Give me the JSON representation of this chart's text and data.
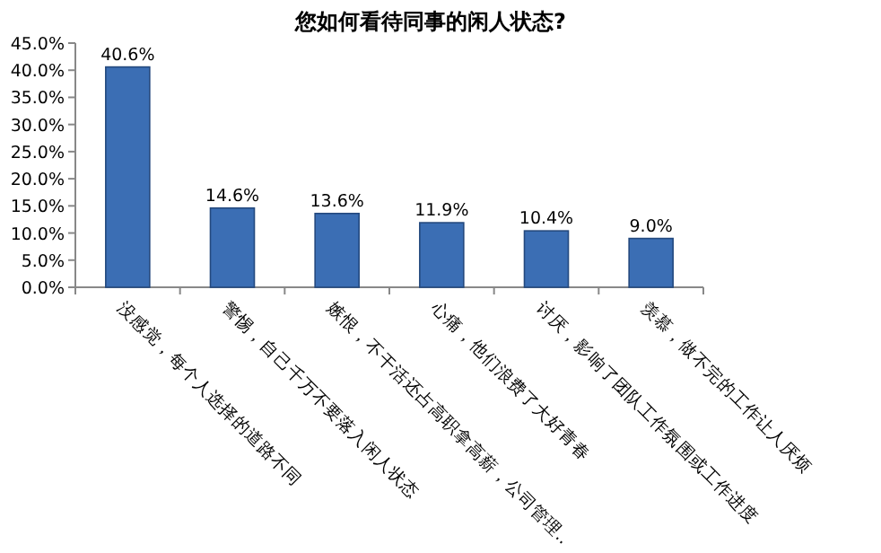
{
  "chart_data": {
    "type": "bar",
    "title": "您如何看待同事的闲人状态?",
    "categories": [
      "没感觉，每个人选择的道路不同",
      "警惕，自己千万不要落入闲人状态",
      "嫉恨，不干活还占高职拿高薪，公司管理..",
      "心痛，他们浪费了大好青春",
      "讨厌，影响了团队工作氛围或工作进度",
      "羡慕，做不完的工作让人厌烦"
    ],
    "values": [
      40.6,
      14.6,
      13.6,
      11.9,
      10.4,
      9.0
    ],
    "value_labels": [
      "40.6%",
      "14.6%",
      "13.6%",
      "11.9%",
      "10.4%",
      "9.0%"
    ],
    "color": "#3b6eb4",
    "ylim": [
      0,
      45
    ],
    "yticks": [
      {
        "value": 0,
        "label": "0.0%"
      },
      {
        "value": 5,
        "label": "5.0%"
      },
      {
        "value": 10,
        "label": "10.0%"
      },
      {
        "value": 15,
        "label": "15.0%"
      },
      {
        "value": 20,
        "label": "20.0%"
      },
      {
        "value": 25,
        "label": "25.0%"
      },
      {
        "value": 30,
        "label": "30.0%"
      },
      {
        "value": 35,
        "label": "35.0%"
      },
      {
        "value": 40,
        "label": "40.0%"
      },
      {
        "value": 45,
        "label": "45.0%"
      }
    ],
    "grid": false
  }
}
